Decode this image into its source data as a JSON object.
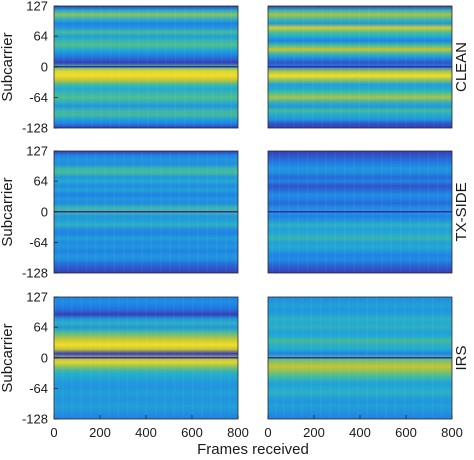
{
  "chart_data": {
    "type": "heatmap",
    "xlabel": "Frames received",
    "ylabel": "Subcarrier",
    "xlim": [
      0,
      800
    ],
    "ylim": [
      -128,
      127
    ],
    "xticks": [
      "0",
      "200",
      "400",
      "600",
      "800"
    ],
    "yticks": [
      "127",
      "64",
      "0",
      "-64",
      "-128"
    ],
    "colormap": "parula",
    "colors": {
      "low": "#3e26a8",
      "mid_low": "#1f96e0",
      "mid": "#30b8b0",
      "mid_high": "#a4be3b",
      "high": "#f9e829"
    },
    "rows": [
      {
        "name": "CLEAN",
        "panels": [
          {
            "profile": [
              0.05,
              0.4,
              0.7,
              0.45,
              0.2,
              0.3,
              0.55,
              0.35,
              0.5,
              0.6,
              0.4,
              0.25,
              0.15,
              0.05,
              0.6,
              0.9,
              0.95,
              0.8,
              0.55,
              0.4,
              0.5,
              0.6,
              0.45,
              0.3,
              0.5,
              0.55,
              0.35,
              0.2,
              0.05
            ]
          },
          {
            "profile": [
              0.05,
              0.5,
              0.75,
              0.55,
              0.3,
              0.85,
              0.6,
              0.4,
              0.2,
              0.55,
              0.8,
              0.5,
              0.25,
              0.1,
              0.2,
              0.75,
              0.95,
              0.7,
              0.35,
              0.4,
              0.6,
              0.75,
              0.5,
              0.3,
              0.55,
              0.4,
              0.3,
              0.1,
              0.05
            ]
          }
        ]
      },
      {
        "name": "TX-SIDE",
        "panels": [
          {
            "profile": [
              0.05,
              0.2,
              0.3,
              0.25,
              0.5,
              0.55,
              0.3,
              0.4,
              0.25,
              0.35,
              0.2,
              0.3,
              0.25,
              0.5,
              0.55,
              0.3,
              0.35,
              0.45,
              0.25,
              0.2,
              0.35,
              0.25,
              0.3,
              0.2,
              0.3,
              0.25,
              0.15,
              0.1,
              0.05
            ]
          },
          {
            "profile": [
              0.05,
              0.1,
              0.15,
              0.2,
              0.3,
              0.25,
              0.15,
              0.2,
              0.1,
              0.15,
              0.25,
              0.2,
              0.15,
              0.25,
              0.3,
              0.2,
              0.3,
              0.45,
              0.35,
              0.4,
              0.5,
              0.35,
              0.4,
              0.3,
              0.2,
              0.25,
              0.15,
              0.1,
              0.05
            ]
          }
        ]
      },
      {
        "name": "IRS",
        "panels": [
          {
            "profile": [
              0.2,
              0.25,
              0.2,
              0.15,
              0.05,
              0.3,
              0.45,
              0.3,
              0.55,
              0.7,
              0.85,
              0.95,
              0.8,
              0.05,
              0.75,
              0.9,
              0.7,
              0.5,
              0.4,
              0.35,
              0.3,
              0.3,
              0.35,
              0.3,
              0.3,
              0.35,
              0.3,
              0.25,
              0.2
            ]
          },
          {
            "profile": [
              0.25,
              0.3,
              0.35,
              0.3,
              0.35,
              0.45,
              0.4,
              0.45,
              0.35,
              0.4,
              0.55,
              0.45,
              0.4,
              0.2,
              0.6,
              0.7,
              0.8,
              0.7,
              0.6,
              0.45,
              0.35,
              0.4,
              0.45,
              0.35,
              0.3,
              0.35,
              0.3,
              0.25,
              0.2
            ]
          }
        ]
      }
    ]
  }
}
